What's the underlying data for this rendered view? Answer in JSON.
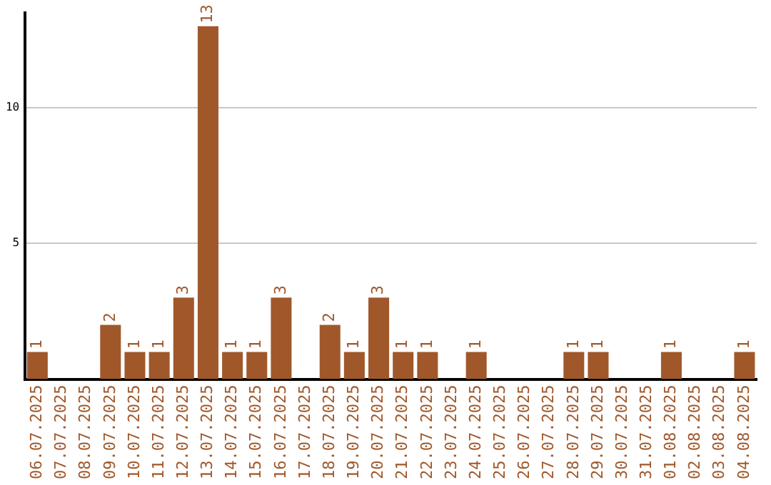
{
  "chart_data": {
    "type": "bar",
    "categories": [
      "06.07.2025",
      "07.07.2025",
      "08.07.2025",
      "09.07.2025",
      "10.07.2025",
      "11.07.2025",
      "12.07.2025",
      "13.07.2025",
      "14.07.2025",
      "15.07.2025",
      "16.07.2025",
      "17.07.2025",
      "18.07.2025",
      "19.07.2025",
      "20.07.2025",
      "21.07.2025",
      "22.07.2025",
      "23.07.2025",
      "24.07.2025",
      "25.07.2025",
      "26.07.2025",
      "27.07.2025",
      "28.07.2025",
      "29.07.2025",
      "30.07.2025",
      "31.07.2025",
      "01.08.2025",
      "02.08.2025",
      "03.08.2025",
      "04.08.2025"
    ],
    "values": [
      1,
      0,
      0,
      2,
      1,
      1,
      3,
      13,
      1,
      1,
      3,
      0,
      2,
      1,
      3,
      1,
      1,
      0,
      1,
      0,
      0,
      0,
      1,
      1,
      0,
      0,
      1,
      0,
      0,
      1
    ],
    "value_labels": [
      "1",
      null,
      null,
      "2",
      "1",
      "1",
      "3",
      "13",
      "1",
      "1",
      "3",
      null,
      "2",
      "1",
      "3",
      "1",
      "1",
      null,
      "1",
      null,
      null,
      null,
      "1",
      "1",
      null,
      null,
      "1",
      null,
      null,
      "1"
    ],
    "color": "#a0582a",
    "ylim": [
      0,
      13.5
    ],
    "yticks": [
      5,
      10
    ],
    "grid": "y",
    "legend": false
  }
}
